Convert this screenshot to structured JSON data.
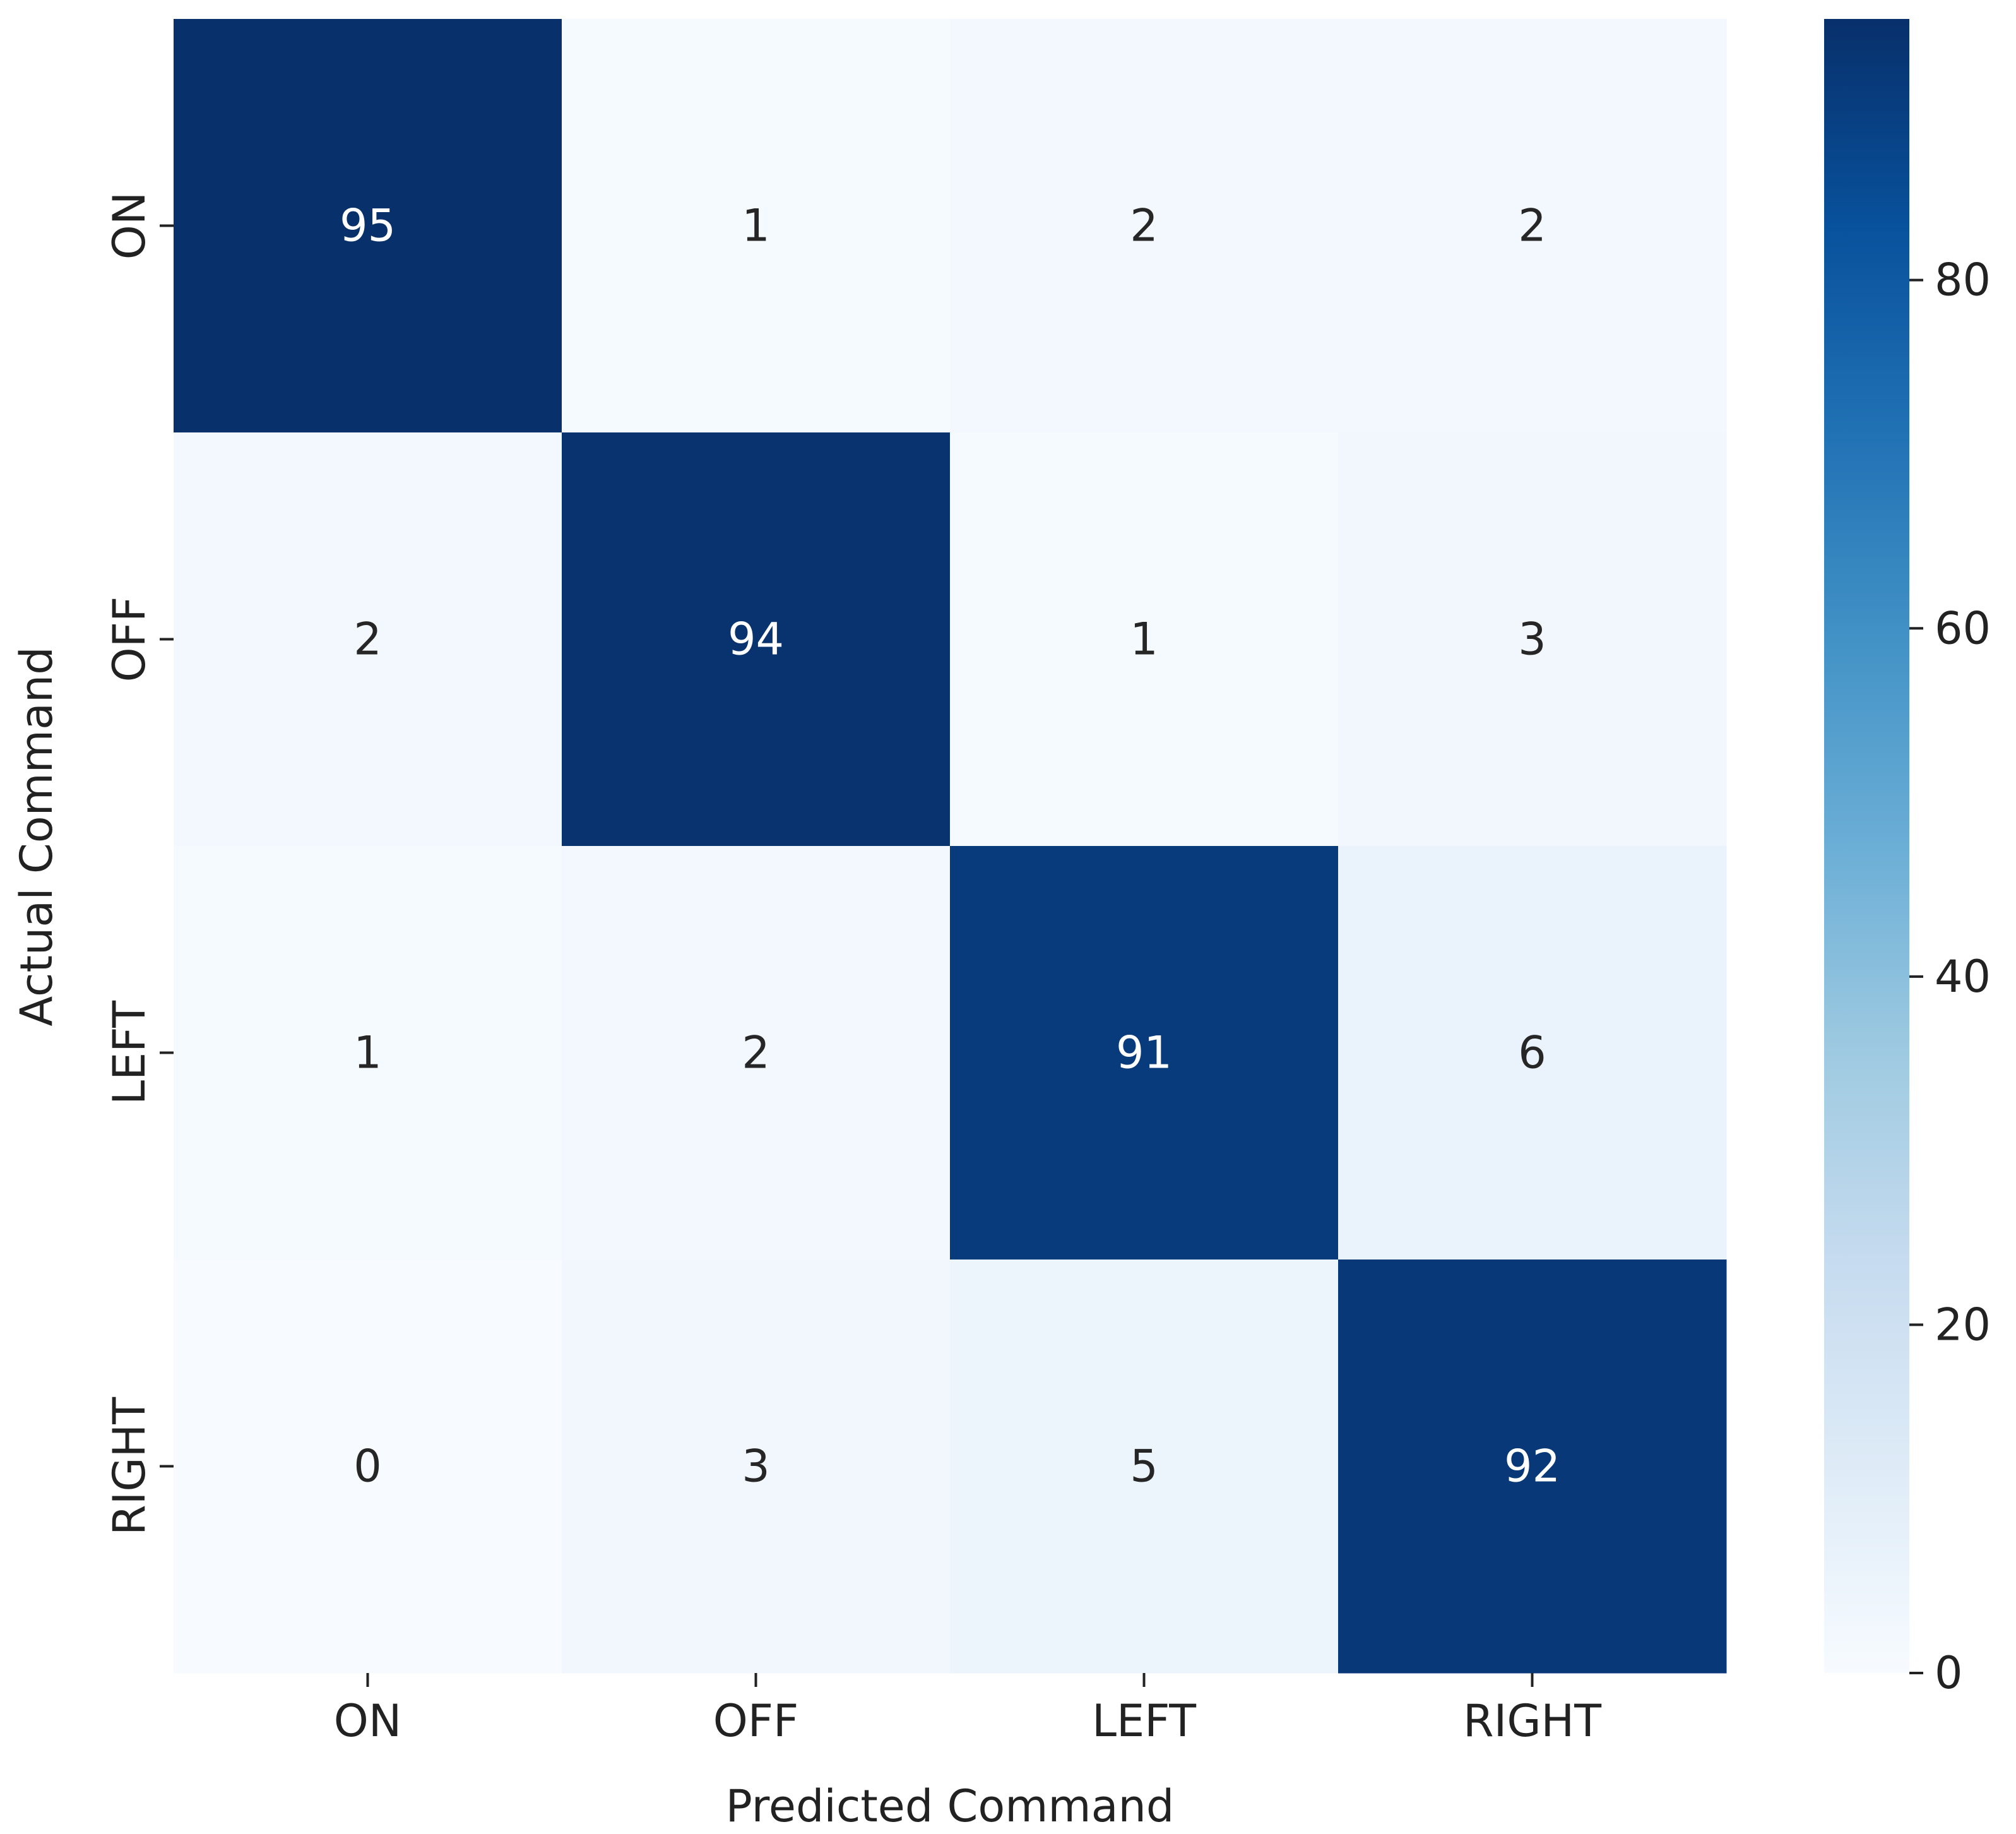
{
  "chart_data": {
    "type": "heatmap",
    "title": "",
    "xlabel": "Predicted Command",
    "ylabel": "Actual Command",
    "x_categories": [
      "ON",
      "OFF",
      "LEFT",
      "RIGHT"
    ],
    "y_categories": [
      "ON",
      "OFF",
      "LEFT",
      "RIGHT"
    ],
    "values": [
      [
        95,
        1,
        2,
        2
      ],
      [
        2,
        94,
        1,
        3
      ],
      [
        1,
        2,
        91,
        6
      ],
      [
        0,
        3,
        5,
        92
      ]
    ],
    "colorbar": {
      "range": [
        0,
        95
      ],
      "ticks": [
        0,
        20,
        40,
        60,
        80
      ],
      "tick_labels": [
        "0",
        "20",
        "40",
        "60",
        "80"
      ],
      "colormap": "Blues"
    },
    "colors": {
      "low": "#f7fbff",
      "high": "#08306b"
    },
    "grid": false
  }
}
